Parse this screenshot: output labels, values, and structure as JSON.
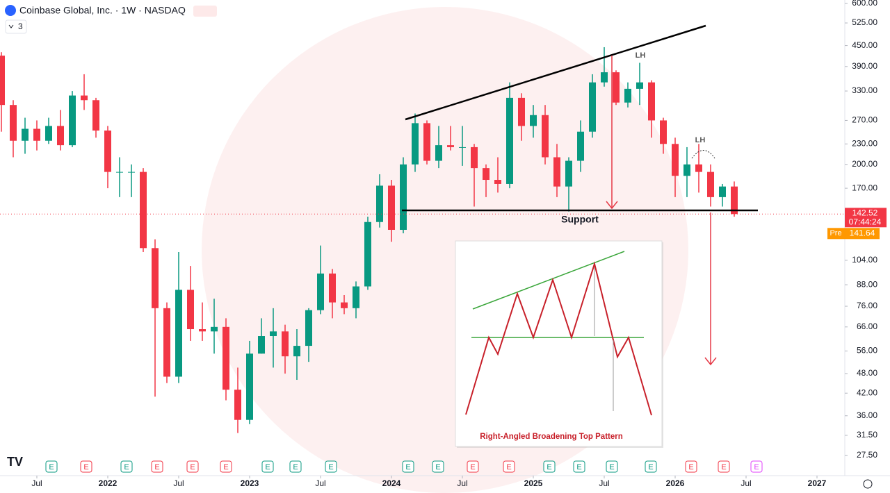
{
  "chart_data": {
    "type": "candlestick",
    "title": "Coinbase Global, Inc. · 1W · NASDAQ",
    "log_scale": true,
    "up_color": "#089981",
    "down_color": "#f23645",
    "x": [
      "2021-04",
      "2021-05",
      "2021-06",
      "2021-07",
      "2021-08",
      "2021-09",
      "2021-10",
      "2021-11",
      "2021-12",
      "2022-01",
      "2022-02",
      "2022-03",
      "2022-04",
      "2022-05",
      "2022-06",
      "2022-07",
      "2022-08",
      "2022-09",
      "2022-10",
      "2022-11",
      "2022-12",
      "2023-01",
      "2023-02",
      "2023-03",
      "2023-04",
      "2023-05",
      "2023-06",
      "2023-07",
      "2023-08",
      "2023-09",
      "2023-10",
      "2023-11",
      "2023-12",
      "2024-01",
      "2024-02",
      "2024-03",
      "2024-04",
      "2024-05",
      "2024-06",
      "2024-07",
      "2024-08",
      "2024-09",
      "2024-10",
      "2024-11",
      "2024-12",
      "2025-01",
      "2025-02",
      "2025-03",
      "2025-04",
      "2025-05",
      "2025-06",
      "2025-07",
      "2025-08",
      "2025-09",
      "2025-10",
      "2025-11",
      "2025-12",
      "2026-01",
      "2026-02",
      "2026-03",
      "2026-04",
      "2026-05",
      "2026-06"
    ],
    "open": [
      420,
      300,
      235,
      255,
      235,
      260,
      228,
      320,
      310,
      252,
      190,
      190,
      190,
      113,
      75,
      47,
      85,
      65,
      64,
      66,
      43,
      35,
      55,
      62,
      64,
      54,
      58,
      74,
      95,
      78,
      75,
      87,
      135,
      173,
      128,
      200,
      265,
      205,
      228,
      225,
      225,
      195,
      180,
      175,
      315,
      260,
      280,
      210,
      172,
      205,
      250,
      350,
      375,
      305,
      335,
      350,
      270,
      230,
      185,
      200,
      190,
      160,
      172
    ],
    "high": [
      430,
      310,
      275,
      270,
      275,
      290,
      330,
      370,
      315,
      260,
      210,
      200,
      195,
      120,
      78,
      110,
      100,
      78,
      80,
      70,
      50,
      60,
      70,
      75,
      67,
      65,
      75,
      115,
      98,
      82,
      90,
      140,
      187,
      180,
      210,
      283,
      270,
      260,
      260,
      260,
      230,
      200,
      210,
      350,
      325,
      300,
      300,
      230,
      210,
      270,
      370,
      445,
      380,
      350,
      400,
      355,
      275,
      240,
      225,
      230,
      200,
      175,
      178
    ],
    "low": [
      250,
      210,
      215,
      220,
      230,
      220,
      225,
      290,
      240,
      170,
      160,
      160,
      110,
      41,
      45,
      45,
      60,
      60,
      55,
      40,
      32,
      34,
      55,
      50,
      48,
      46,
      52,
      72,
      70,
      72,
      70,
      85,
      130,
      118,
      125,
      190,
      200,
      195,
      220,
      198,
      150,
      160,
      165,
      170,
      235,
      240,
      200,
      160,
      145,
      190,
      240,
      340,
      300,
      295,
      300,
      240,
      215,
      160,
      160,
      165,
      150,
      150,
      140
    ],
    "close": [
      300,
      235,
      255,
      235,
      260,
      228,
      320,
      310,
      252,
      190,
      190,
      190,
      113,
      75,
      47,
      85,
      65,
      64,
      66,
      43,
      35,
      55,
      62,
      64,
      54,
      58,
      74,
      95,
      78,
      75,
      87,
      135,
      173,
      128,
      200,
      265,
      205,
      228,
      225,
      225,
      195,
      180,
      175,
      315,
      260,
      280,
      210,
      172,
      205,
      250,
      350,
      375,
      305,
      335,
      350,
      270,
      230,
      185,
      200,
      190,
      160,
      172,
      142.52
    ],
    "ylim": [
      24.5,
      614
    ],
    "yticks": [
      {
        "value": 600,
        "label": "600.00"
      },
      {
        "value": 525,
        "label": "525.00"
      },
      {
        "value": 450,
        "label": "450.00"
      },
      {
        "value": 390,
        "label": "390.00"
      },
      {
        "value": 330,
        "label": "330.00"
      },
      {
        "value": 270,
        "label": "270.00"
      },
      {
        "value": 230,
        "label": "230.00"
      },
      {
        "value": 200,
        "label": "200.00"
      },
      {
        "value": 170,
        "label": "170.00"
      },
      {
        "value": 104,
        "label": "104.00"
      },
      {
        "value": 88,
        "label": "88.00"
      },
      {
        "value": 76,
        "label": "76.00"
      },
      {
        "value": 66,
        "label": "66.00"
      },
      {
        "value": 56,
        "label": "56.00"
      },
      {
        "value": 48,
        "label": "48.00"
      },
      {
        "value": 42,
        "label": "42.00"
      },
      {
        "value": 36,
        "label": "36.00"
      },
      {
        "value": 31.5,
        "label": "31.50"
      },
      {
        "value": 27.5,
        "label": "27.50"
      }
    ],
    "xticks": [
      {
        "value": "2021-07",
        "label": "Jul"
      },
      {
        "value": "2022-01",
        "label": "2022"
      },
      {
        "value": "2022-07",
        "label": "Jul"
      },
      {
        "value": "2023-01",
        "label": "2023"
      },
      {
        "value": "2023-07",
        "label": "Jul"
      },
      {
        "value": "2024-01",
        "label": "2024"
      },
      {
        "value": "2024-07",
        "label": "Jul"
      },
      {
        "value": "2025-01",
        "label": "2025"
      },
      {
        "value": "2025-07",
        "label": "Jul"
      },
      {
        "value": "2026-01",
        "label": "2026"
      },
      {
        "value": "2026-07",
        "label": "Jul"
      },
      {
        "value": "2027-01",
        "label": "2027"
      }
    ],
    "last_price": {
      "value": 142.52,
      "label": "142.52",
      "countdown": "07:44:24",
      "color": "#f23645"
    },
    "premarket": {
      "tag": "Pre",
      "value": 141.64,
      "label": "141.64",
      "color": "#ff9800"
    },
    "annotations": [
      "Support",
      "LH",
      "LH"
    ],
    "inset_caption": "Right-Angled Broadening Top Pattern",
    "events": [
      {
        "label": "E",
        "color": "#089981"
      },
      {
        "label": "E",
        "color": "#f23645"
      },
      {
        "label": "E",
        "color": "#089981"
      },
      {
        "label": "E",
        "color": "#f23645"
      },
      {
        "label": "E",
        "color": "#f23645"
      },
      {
        "label": "E",
        "color": "#f23645"
      },
      {
        "label": "E",
        "color": "#089981"
      },
      {
        "label": "E",
        "color": "#089981"
      },
      {
        "label": "E",
        "color": "#089981"
      },
      {
        "label": "E",
        "color": "#089981"
      },
      {
        "label": "E",
        "color": "#089981"
      },
      {
        "label": "E",
        "color": "#f23645"
      },
      {
        "label": "E",
        "color": "#f23645"
      },
      {
        "label": "E",
        "color": "#089981"
      },
      {
        "label": "E",
        "color": "#089981"
      },
      {
        "label": "E",
        "color": "#089981"
      },
      {
        "label": "E",
        "color": "#089981"
      },
      {
        "label": "E",
        "color": "#f23645"
      },
      {
        "label": "E",
        "color": "#f23645"
      },
      {
        "label": "E",
        "color": "#e040fb"
      }
    ],
    "indicator_count": "3"
  }
}
